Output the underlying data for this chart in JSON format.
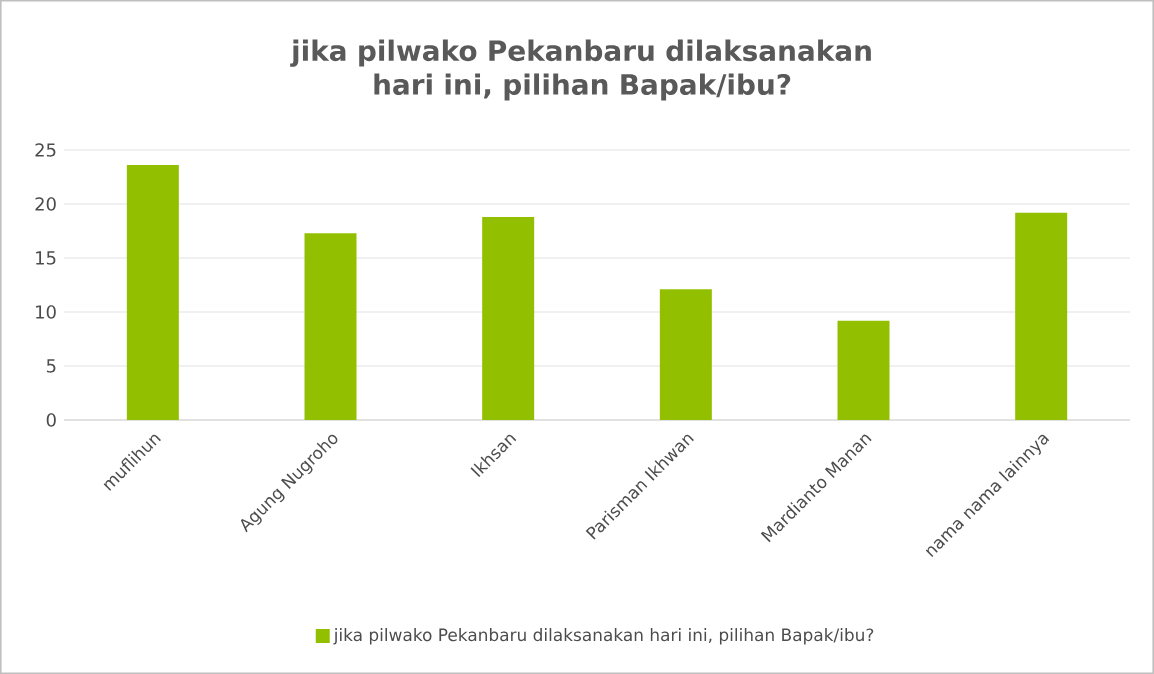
{
  "chart_data": {
    "type": "bar",
    "title": "jika pilwako Pekanbaru dilaksanakan hari ini, pilihan Bapak/ibu?",
    "categories": [
      "muflihun",
      "Agung Nugroho",
      "Ikhsan",
      "Parisman Ikhwan",
      "Mardianto Manan",
      "nama nama lainnya"
    ],
    "series": [
      {
        "name": "jika pilwako Pekanbaru dilaksanakan hari ini, pilihan Bapak/ibu?",
        "color": "#92c000",
        "values": [
          23.6,
          17.3,
          18.8,
          12.1,
          9.2,
          19.2
        ]
      }
    ],
    "ylim": [
      0,
      25
    ],
    "yticks": [
      0,
      5,
      10,
      15,
      20,
      25
    ],
    "grid": "y",
    "legend": "bottom"
  }
}
